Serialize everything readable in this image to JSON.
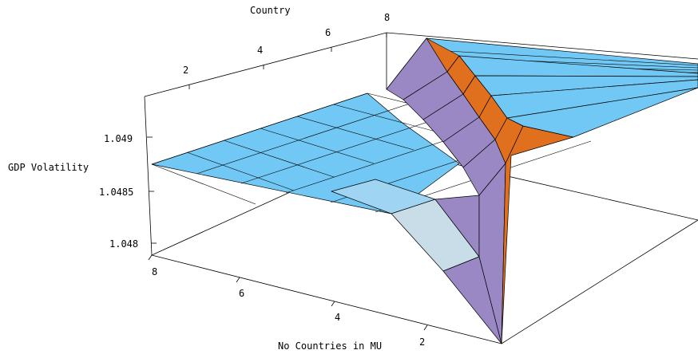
{
  "chart_data": {
    "type": "surface3d",
    "title": "",
    "axes": {
      "x": {
        "label": "Country",
        "ticks": [
          "2",
          "4",
          "6",
          "8"
        ]
      },
      "y": {
        "label": "No Countries  in MU",
        "ticks": [
          "2",
          "4",
          "6",
          "8"
        ]
      },
      "z": {
        "label": "GDP Volatility",
        "ticks": [
          "1.048",
          "1.0485",
          "1.049"
        ]
      }
    },
    "colors": {
      "flat_top": "#72c8f4",
      "orange_wall": "#e0701e",
      "purple_wall": "#9a88c4",
      "light_pale": "#c9dde8",
      "mid_blue": "#9fd4f2"
    }
  }
}
